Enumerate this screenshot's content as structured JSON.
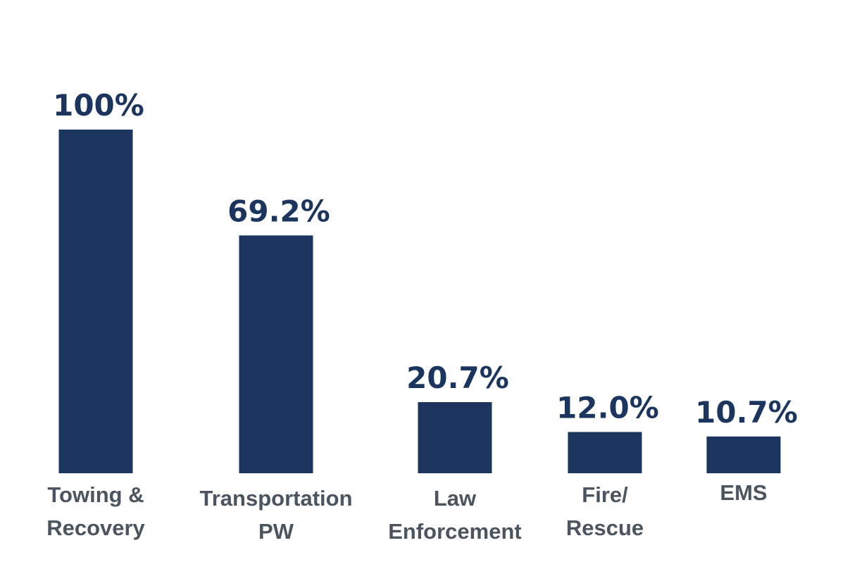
{
  "colors": {
    "bar": "#1c355e",
    "value_label": "#1c355e",
    "category_label": "#4a5560",
    "background": "#ffffff"
  },
  "chart_data": {
    "type": "bar",
    "title": "",
    "xlabel": "",
    "ylabel": "",
    "ylim": [
      0,
      100
    ],
    "grid": false,
    "legend": "none",
    "categories": [
      [
        "Towing &",
        "Recovery"
      ],
      [
        "Transportation",
        "PW"
      ],
      [
        "Law",
        "Enforcement"
      ],
      [
        "Fire/",
        "Rescue"
      ],
      [
        "EMS"
      ]
    ],
    "values": [
      100,
      69.2,
      20.7,
      12.0,
      10.7
    ],
    "value_labels": [
      "100%",
      "69.2%",
      "20.7%",
      "12.0%",
      "10.7%"
    ]
  }
}
